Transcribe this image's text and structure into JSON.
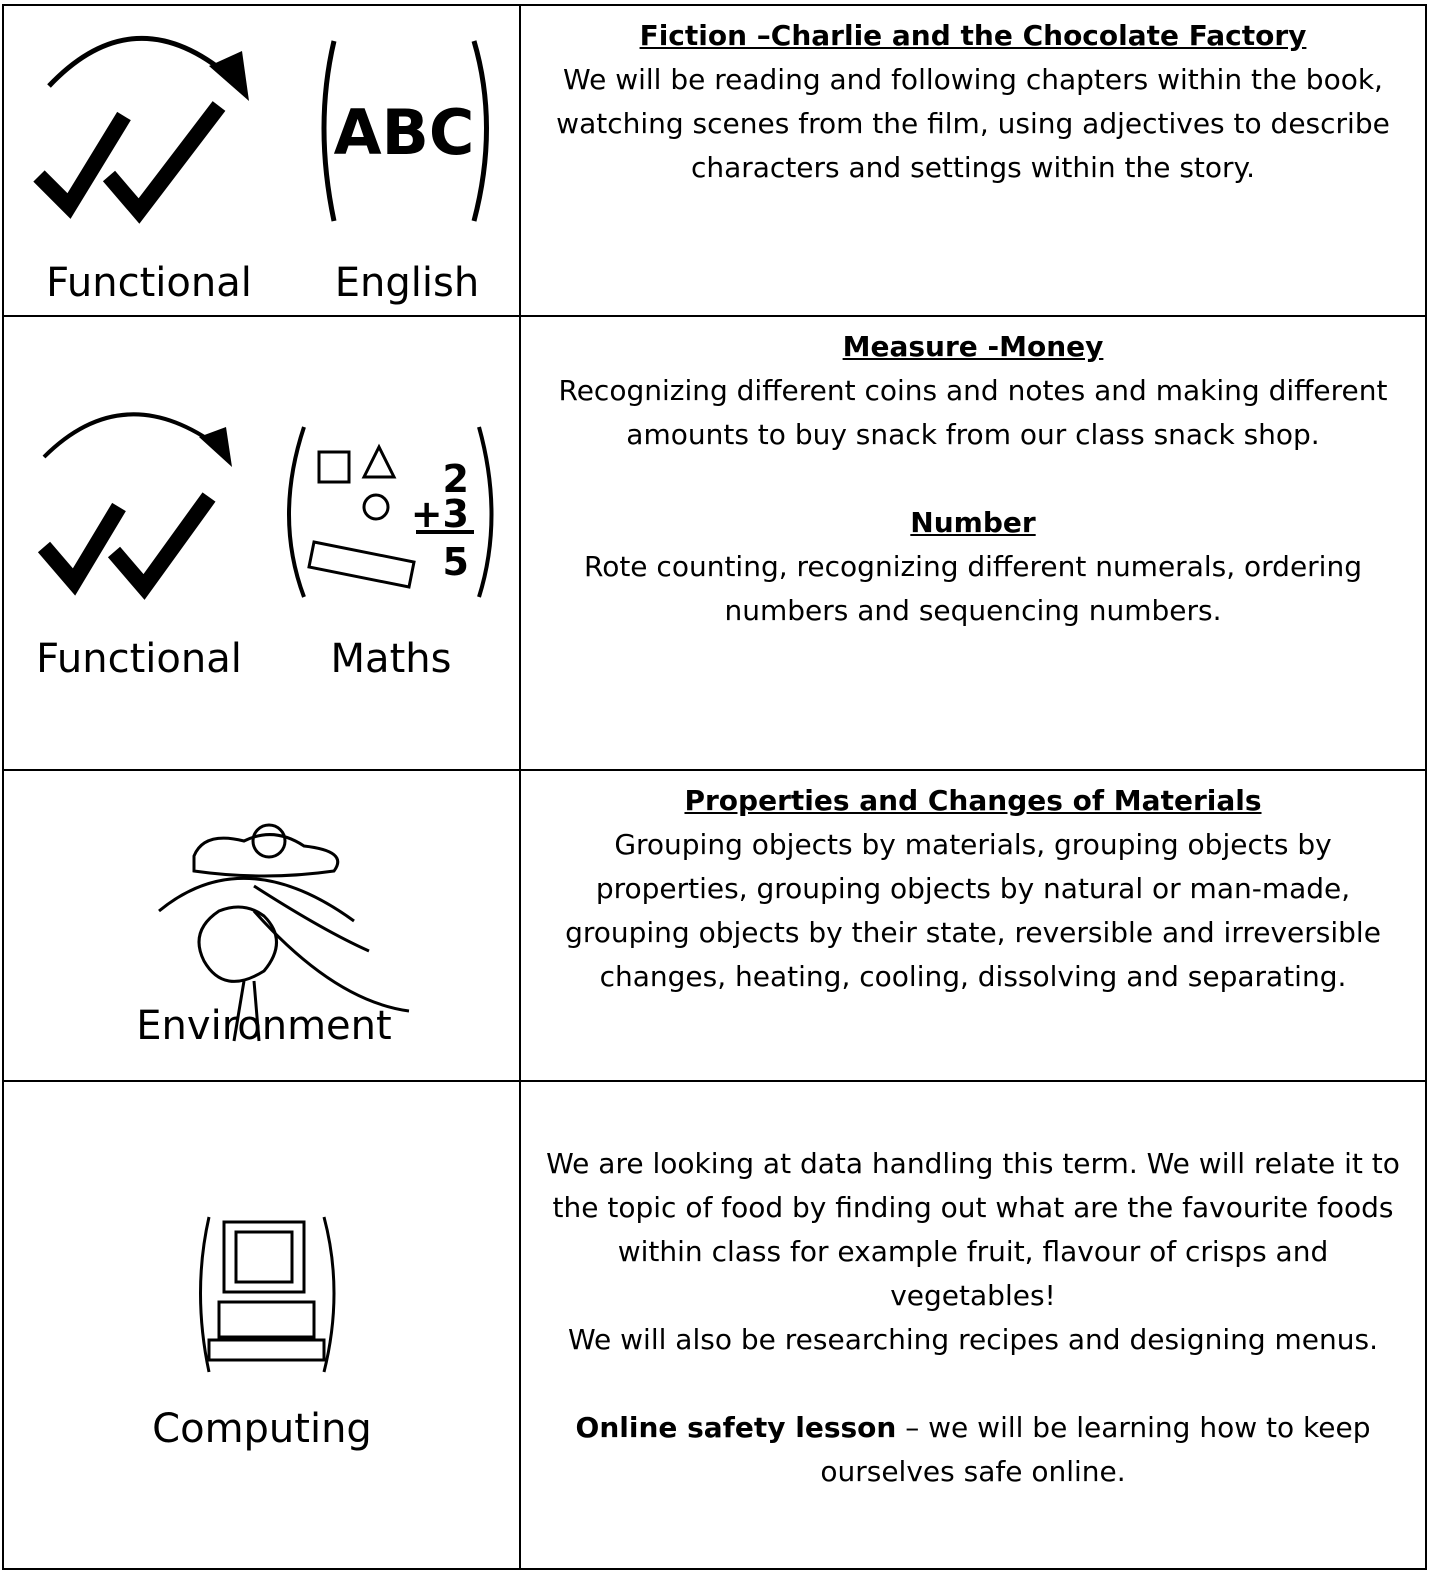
{
  "rows": [
    {
      "labels": [
        "Functional",
        "English"
      ],
      "icon_text": [
        "ABC"
      ],
      "blocks": [
        {
          "heading": "Fiction –Charlie and the Chocolate Factory",
          "text": "We will be reading and following chapters within the book, watching scenes from the film, using adjectives to describe characters and settings within the story."
        }
      ]
    },
    {
      "labels": [
        "Functional",
        "Maths"
      ],
      "icon_text": [
        "2",
        "+3",
        "5"
      ],
      "blocks": [
        {
          "heading": "Measure -Money",
          "text": "Recognizing different coins and notes and making different amounts to buy snack from our class snack shop."
        },
        {
          "heading": "Number",
          "text": "Rote counting, recognizing different numerals, ordering numbers and sequencing numbers."
        }
      ]
    },
    {
      "labels": [
        "Environment"
      ],
      "blocks": [
        {
          "heading": "Properties and Changes of Materials",
          "text": "Grouping objects by materials, grouping objects by properties, grouping objects by natural or man-made, grouping objects by their state, reversible and irreversible changes, heating, cooling, dissolving and separating."
        }
      ]
    },
    {
      "labels": [
        "Computing"
      ],
      "blocks": [
        {
          "text": "We are looking at data handling this term. We will relate it to the topic of food by finding out what are the favourite foods within class for example fruit, flavour of crisps and vegetables!"
        },
        {
          "text": "We will also be researching recipes and designing menus."
        },
        {
          "bold": "Online safety lesson",
          "text": "– we will be learning how to keep ourselves safe online."
        }
      ]
    }
  ]
}
